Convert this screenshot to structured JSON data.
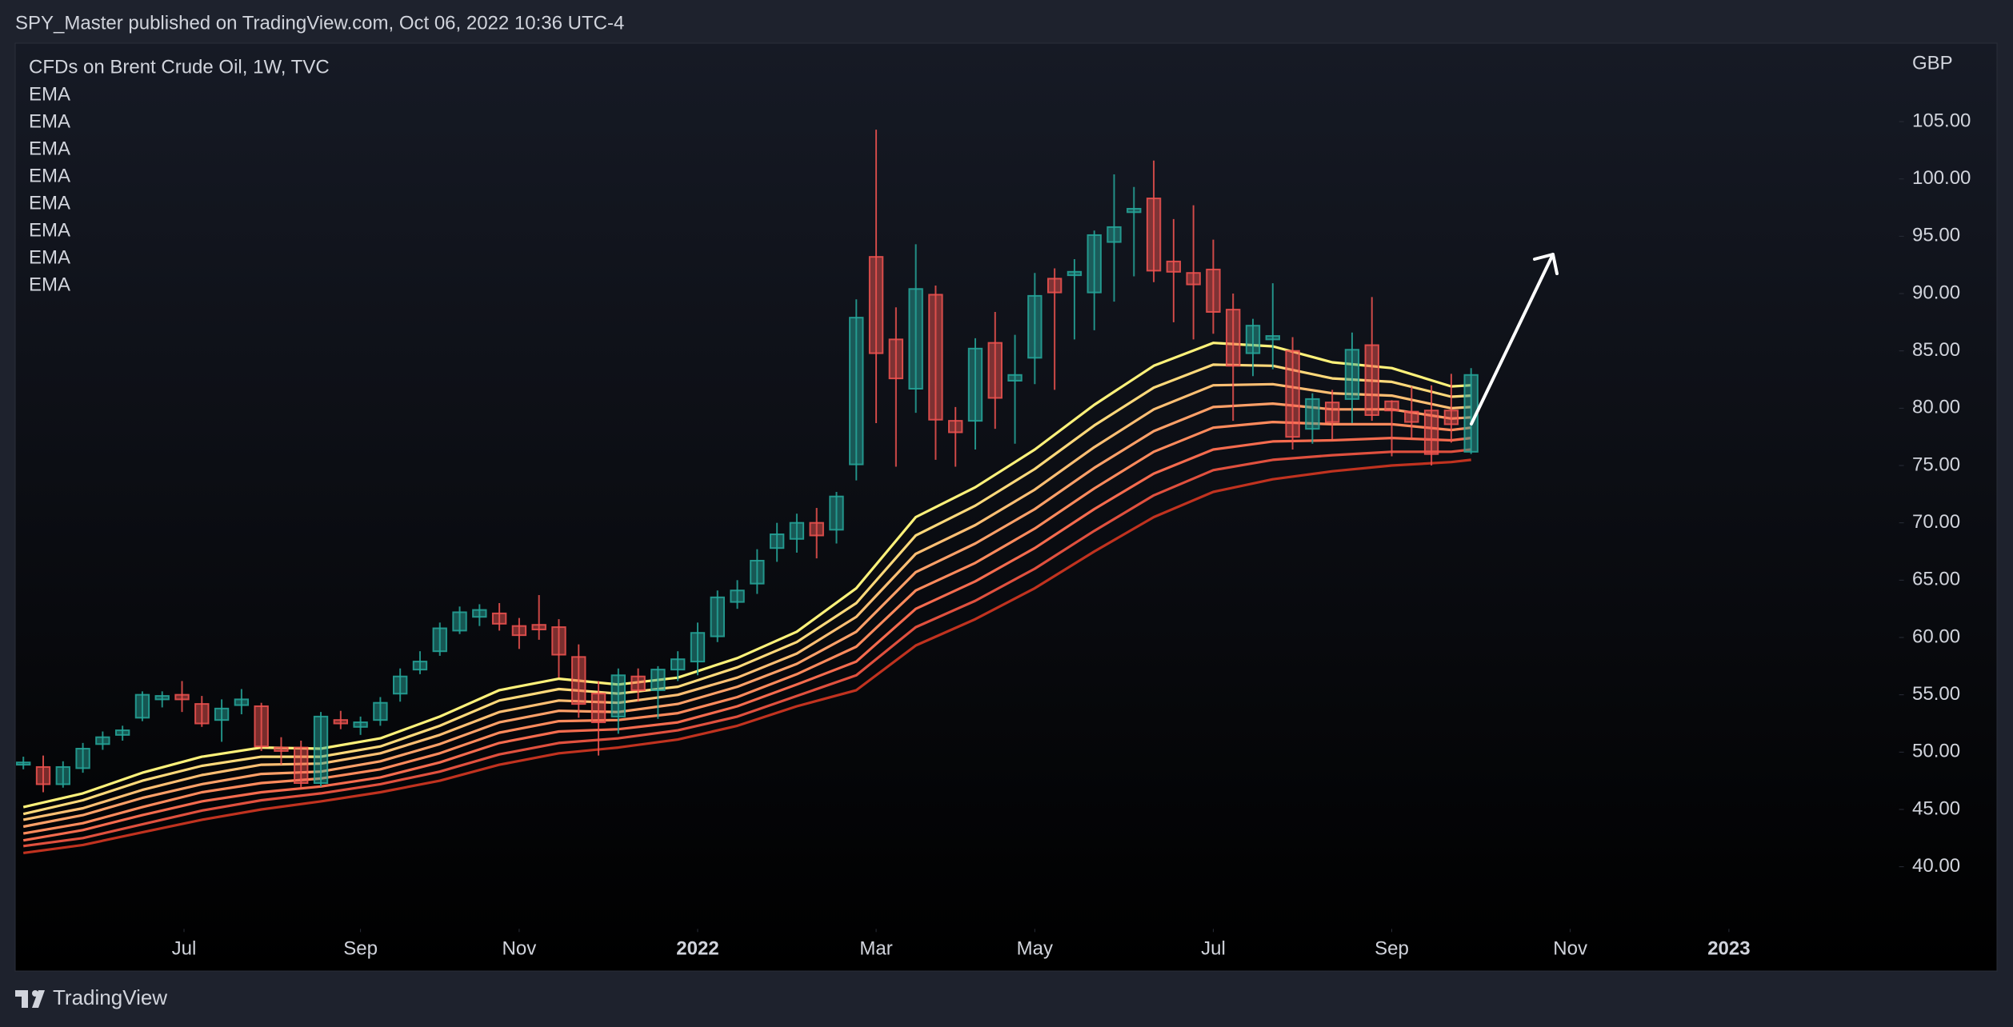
{
  "header": {
    "text": "SPY_Master published on TradingView.com, Oct 06, 2022 10:36 UTC-4"
  },
  "footer": {
    "brand": "TradingView"
  },
  "chart_data": {
    "type": "candlestick",
    "title": "CFDs on Brent Crude Oil, 1W, TVC",
    "y_axis_label": "GBP",
    "up_color": "#26a69a",
    "down_color": "#ef5350",
    "candles": {
      "open": [
        48.9,
        48.7,
        47.2,
        48.6,
        50.7,
        51.5,
        53.0,
        54.6,
        55.0,
        54.2,
        52.8,
        54.1,
        54.0,
        50.4,
        50.4,
        47.3,
        52.8,
        52.2,
        52.8,
        55.1,
        57.2,
        58.8,
        60.6,
        61.8,
        62.1,
        61.0,
        61.1,
        60.9,
        58.3,
        55.1,
        53.1,
        56.6,
        55.4,
        57.2,
        57.9,
        60.1,
        63.1,
        64.7,
        67.8,
        68.6,
        70.0,
        69.4,
        75.1,
        93.2,
        86.0,
        81.7,
        89.9,
        78.9,
        78.9,
        85.7,
        82.4,
        84.4,
        91.3,
        91.6,
        90.1,
        94.5,
        97.1,
        98.3,
        92.8,
        91.8,
        92.1,
        88.6,
        84.8,
        86.0,
        85.0,
        78.2,
        80.5,
        80.8,
        85.5,
        80.6,
        79.7,
        79.8,
        79.8,
        76.2
      ],
      "high": [
        49.6,
        49.7,
        49.2,
        50.8,
        51.8,
        52.3,
        55.3,
        55.3,
        56.2,
        54.9,
        54.6,
        55.5,
        54.3,
        51.3,
        51.0,
        53.5,
        53.6,
        53.1,
        54.8,
        57.3,
        58.8,
        61.3,
        62.7,
        62.9,
        63.0,
        61.7,
        63.7,
        61.6,
        59.4,
        56.2,
        57.3,
        57.3,
        57.5,
        58.8,
        61.3,
        64.1,
        65.0,
        67.7,
        70.0,
        70.8,
        71.3,
        72.7,
        89.5,
        104.3,
        88.8,
        94.3,
        90.7,
        80.1,
        86.1,
        88.4,
        86.4,
        91.8,
        92.2,
        93.0,
        95.5,
        100.4,
        99.3,
        101.6,
        96.5,
        97.7,
        94.7,
        90.0,
        87.8,
        90.9,
        86.2,
        81.3,
        81.6,
        86.6,
        89.7,
        80.7,
        81.9,
        82.0,
        83.0,
        83.5
      ],
      "low": [
        48.5,
        46.5,
        46.9,
        48.2,
        50.2,
        51.0,
        52.7,
        53.9,
        53.5,
        52.2,
        50.9,
        53.3,
        50.1,
        48.9,
        46.9,
        47.0,
        52.0,
        51.5,
        52.3,
        54.4,
        56.8,
        58.4,
        60.3,
        61.0,
        60.6,
        59.0,
        59.8,
        56.5,
        53.0,
        49.7,
        51.6,
        54.4,
        52.9,
        56.2,
        56.7,
        59.6,
        62.5,
        63.8,
        66.6,
        67.4,
        66.9,
        68.2,
        73.7,
        78.7,
        74.9,
        79.6,
        75.5,
        74.9,
        76.4,
        78.2,
        76.9,
        82.1,
        81.6,
        86.0,
        86.8,
        89.3,
        91.5,
        91.0,
        87.5,
        86.0,
        86.5,
        78.9,
        82.8,
        83.4,
        76.4,
        76.9,
        77.3,
        78.7,
        78.9,
        75.8,
        77.4,
        75.0,
        77.0,
        76.0
      ],
      "close": [
        49.1,
        47.2,
        48.7,
        50.3,
        51.3,
        51.9,
        55.0,
        54.9,
        54.6,
        52.5,
        53.8,
        54.6,
        50.5,
        50.1,
        47.3,
        53.1,
        52.5,
        52.6,
        54.3,
        56.6,
        57.9,
        60.8,
        62.2,
        62.4,
        61.2,
        60.2,
        60.7,
        58.5,
        54.2,
        52.6,
        56.7,
        55.4,
        57.2,
        58.1,
        60.4,
        63.5,
        64.1,
        66.7,
        69.0,
        70.0,
        68.9,
        72.3,
        87.9,
        84.8,
        82.6,
        90.4,
        79.0,
        77.9,
        85.2,
        80.9,
        82.9,
        89.8,
        90.1,
        91.9,
        95.1,
        95.8,
        97.4,
        92.0,
        91.9,
        90.8,
        88.4,
        83.7,
        87.2,
        86.3,
        77.5,
        80.8,
        78.8,
        85.1,
        79.4,
        79.8,
        78.8,
        76.0,
        78.6,
        82.9
      ]
    },
    "series": [
      {
        "name": "EMA",
        "color": "#fff27a",
        "x": [
          0,
          3,
          6,
          9,
          12,
          15,
          18,
          21,
          24,
          27,
          30,
          33,
          36,
          39,
          42,
          45,
          48,
          51,
          54,
          57,
          60,
          63,
          66,
          69,
          72,
          73
        ],
        "values": [
          45.2,
          46.4,
          48.2,
          49.6,
          50.4,
          50.3,
          51.2,
          53.1,
          55.4,
          56.4,
          55.9,
          56.5,
          58.2,
          60.5,
          64.3,
          70.5,
          73.1,
          76.4,
          80.3,
          83.7,
          85.7,
          85.4,
          84.0,
          83.5,
          81.9,
          82.0
        ]
      },
      {
        "name": "EMA",
        "color": "#ffd97a",
        "x": [
          0,
          3,
          6,
          9,
          12,
          15,
          18,
          21,
          24,
          27,
          30,
          33,
          36,
          39,
          42,
          45,
          48,
          51,
          54,
          57,
          60,
          63,
          66,
          69,
          72,
          73
        ],
        "values": [
          44.6,
          45.8,
          47.5,
          48.8,
          49.6,
          49.6,
          50.5,
          52.3,
          54.5,
          55.5,
          55.1,
          55.7,
          57.4,
          59.6,
          63.0,
          68.9,
          71.5,
          74.7,
          78.5,
          81.8,
          83.8,
          83.7,
          82.6,
          82.3,
          81.0,
          81.1
        ]
      },
      {
        "name": "EMA",
        "color": "#ffbf73",
        "x": [
          0,
          3,
          6,
          9,
          12,
          15,
          18,
          21,
          24,
          27,
          30,
          33,
          36,
          39,
          42,
          45,
          48,
          51,
          54,
          57,
          60,
          63,
          66,
          69,
          72,
          73
        ],
        "values": [
          44.1,
          45.1,
          46.7,
          48.0,
          48.9,
          49.0,
          49.9,
          51.5,
          53.5,
          54.5,
          54.3,
          55.0,
          56.5,
          58.6,
          61.8,
          67.3,
          69.8,
          72.9,
          76.6,
          79.9,
          82.0,
          82.1,
          81.3,
          81.1,
          80.0,
          80.1
        ]
      },
      {
        "name": "EMA",
        "color": "#ffa068",
        "x": [
          0,
          3,
          6,
          9,
          12,
          15,
          18,
          21,
          24,
          27,
          30,
          33,
          36,
          39,
          42,
          45,
          48,
          51,
          54,
          57,
          60,
          63,
          66,
          69,
          72,
          73
        ],
        "values": [
          43.5,
          44.5,
          46.0,
          47.2,
          48.1,
          48.3,
          49.2,
          50.7,
          52.6,
          53.6,
          53.5,
          54.2,
          55.7,
          57.7,
          60.5,
          65.7,
          68.2,
          71.2,
          74.8,
          78.0,
          80.1,
          80.4,
          79.9,
          79.9,
          79.1,
          79.2
        ]
      },
      {
        "name": "EMA",
        "color": "#ff8a5c",
        "x": [
          0,
          3,
          6,
          9,
          12,
          15,
          18,
          21,
          24,
          27,
          30,
          33,
          36,
          39,
          42,
          45,
          48,
          51,
          54,
          57,
          60,
          63,
          66,
          69,
          72,
          73
        ],
        "values": [
          42.9,
          43.8,
          45.2,
          46.5,
          47.3,
          47.7,
          48.5,
          49.9,
          51.7,
          52.7,
          52.8,
          53.4,
          54.8,
          56.8,
          59.2,
          64.1,
          66.5,
          69.5,
          73.0,
          76.2,
          78.3,
          78.8,
          78.6,
          78.6,
          78.1,
          78.3
        ]
      },
      {
        "name": "EMA",
        "color": "#f56b4e",
        "x": [
          0,
          3,
          6,
          9,
          12,
          15,
          18,
          21,
          24,
          27,
          30,
          33,
          36,
          39,
          42,
          45,
          48,
          51,
          54,
          57,
          60,
          63,
          66,
          69,
          72,
          73
        ],
        "values": [
          42.3,
          43.2,
          44.5,
          45.7,
          46.5,
          47.0,
          47.8,
          49.1,
          50.8,
          51.8,
          52.0,
          52.6,
          54.0,
          55.9,
          57.9,
          62.5,
          64.9,
          67.8,
          71.2,
          74.3,
          76.4,
          77.1,
          77.2,
          77.4,
          77.2,
          77.4
        ]
      },
      {
        "name": "EMA",
        "color": "#e0503e",
        "x": [
          0,
          3,
          6,
          9,
          12,
          15,
          18,
          21,
          24,
          27,
          30,
          33,
          36,
          39,
          42,
          45,
          48,
          51,
          54,
          57,
          60,
          63,
          66,
          69,
          72,
          73
        ],
        "values": [
          41.8,
          42.5,
          43.7,
          44.9,
          45.8,
          46.4,
          47.2,
          48.3,
          49.8,
          50.8,
          51.2,
          51.9,
          53.1,
          54.9,
          56.7,
          60.9,
          63.2,
          66.0,
          69.3,
          72.4,
          74.6,
          75.5,
          75.9,
          76.2,
          76.2,
          76.4
        ]
      },
      {
        "name": "EMA",
        "color": "#c0321f",
        "x": [
          0,
          3,
          6,
          9,
          12,
          15,
          18,
          21,
          24,
          27,
          30,
          33,
          36,
          39,
          42,
          45,
          48,
          51,
          54,
          57,
          60,
          63,
          66,
          69,
          72,
          73
        ],
        "values": [
          41.2,
          41.9,
          43.0,
          44.1,
          45.0,
          45.7,
          46.5,
          47.5,
          48.9,
          49.9,
          50.4,
          51.1,
          52.3,
          54.0,
          55.4,
          59.3,
          61.6,
          64.3,
          67.5,
          70.5,
          72.7,
          73.8,
          74.5,
          75.0,
          75.3,
          75.5
        ]
      }
    ],
    "xlim": [
      -0.4,
      94.5
    ],
    "xticks": [
      {
        "value": 8.1,
        "label": "Jul"
      },
      {
        "value": 17,
        "label": "Sep"
      },
      {
        "value": 25,
        "label": "Nov"
      },
      {
        "value": 34,
        "label": "2022"
      },
      {
        "value": 43,
        "label": "Mar"
      },
      {
        "value": 51,
        "label": "May"
      },
      {
        "value": 60,
        "label": "Jul"
      },
      {
        "value": 69,
        "label": "Sep"
      },
      {
        "value": 78,
        "label": "Nov"
      },
      {
        "value": 86,
        "label": "2023"
      }
    ],
    "ylim": [
      35.0,
      111.8
    ],
    "yticks": [
      {
        "value": 40,
        "label": "40.00"
      },
      {
        "value": 45,
        "label": "45.00"
      },
      {
        "value": 50,
        "label": "50.00"
      },
      {
        "value": 55,
        "label": "55.00"
      },
      {
        "value": 60,
        "label": "60.00"
      },
      {
        "value": 65,
        "label": "65.00"
      },
      {
        "value": 70,
        "label": "70.00"
      },
      {
        "value": 75,
        "label": "75.00"
      },
      {
        "value": 80,
        "label": "80.00"
      },
      {
        "value": 85,
        "label": "85.00"
      },
      {
        "value": 90,
        "label": "90.00"
      },
      {
        "value": 95,
        "label": "95.00"
      },
      {
        "value": 100,
        "label": "100.00"
      },
      {
        "value": 105,
        "label": "105.00"
      }
    ],
    "grid": false
  }
}
